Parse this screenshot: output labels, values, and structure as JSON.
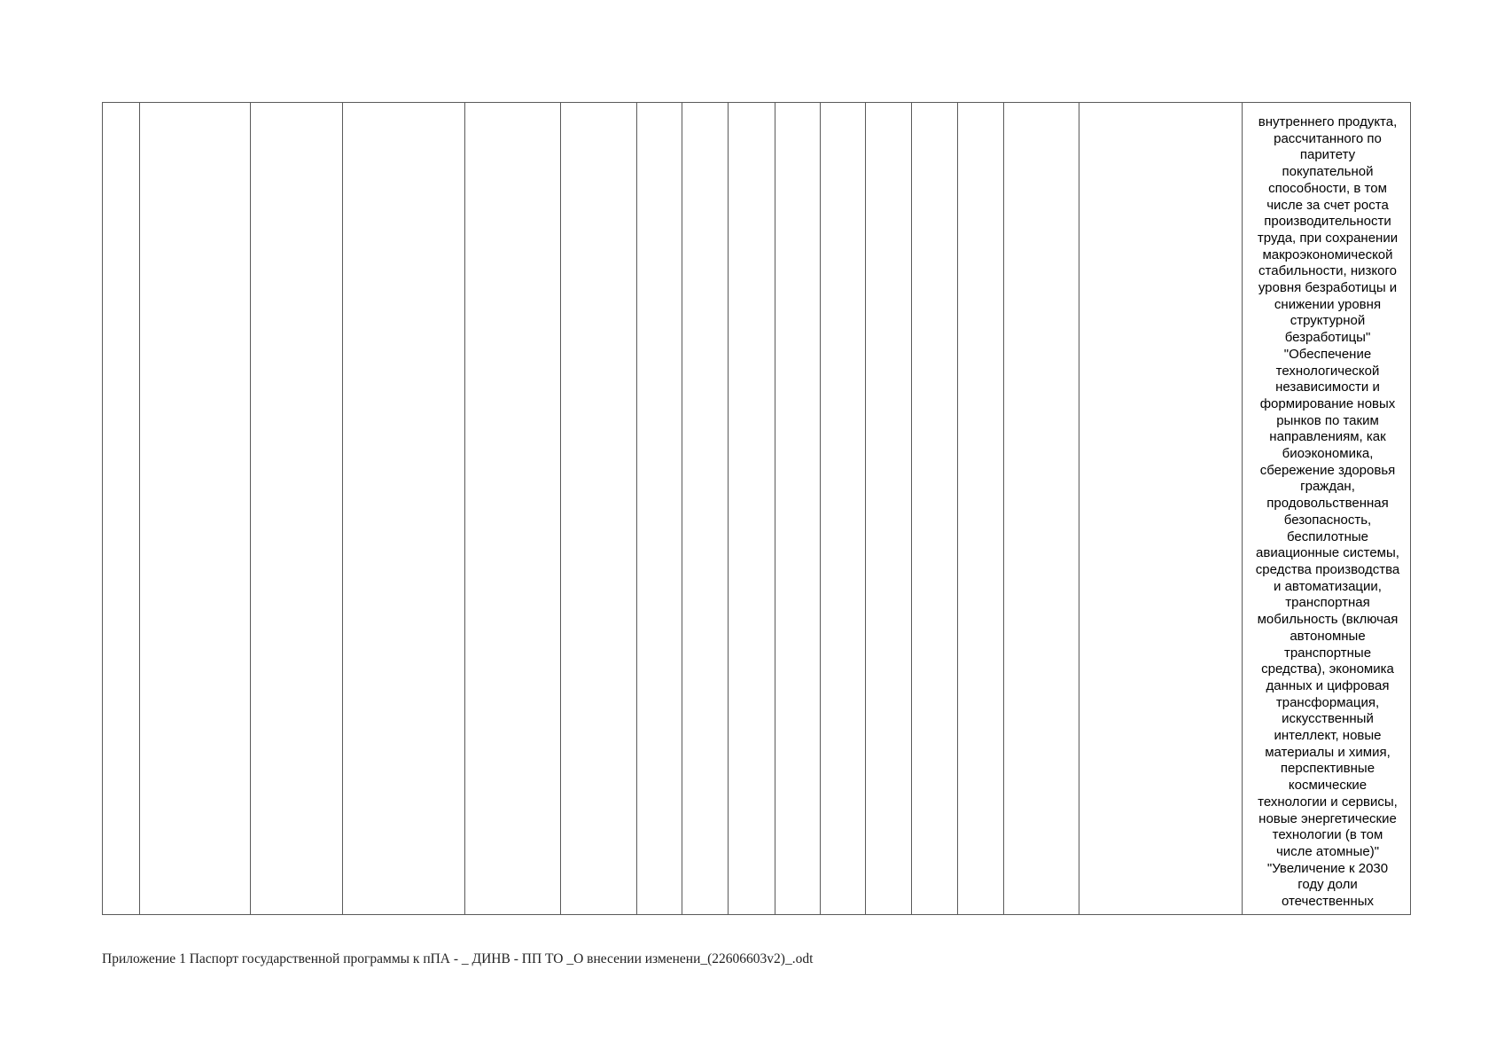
{
  "table": {
    "last_column_lines": [
      "внутреннего продукта,",
      "рассчитанного по",
      "паритету",
      "покупательной",
      "способности, в том",
      "числе за счет роста",
      "производительности",
      "труда, при сохранении",
      "макроэкономической",
      "стабильности, низкого",
      "уровня безработицы и",
      "снижении уровня",
      "структурной",
      "безработицы\"",
      "\"Обеспечение",
      "технологической",
      "независимости и",
      "формирование новых",
      "рынков по таким",
      "направлениям, как",
      "биоэкономика,",
      "сбережение здоровья",
      "граждан,",
      "продовольственная",
      "безопасность,",
      "беспилотные",
      "авиационные системы,",
      "средства производства",
      "и автоматизации,",
      "транспортная",
      "мобильность (включая",
      "автономные",
      "транспортные",
      "средства), экономика",
      "данных и цифровая",
      "трансформация,",
      "искусственный",
      "интеллект, новые",
      "материалы и химия,",
      "перспективные",
      "космические",
      "технологии и сервисы,",
      "новые энергетические",
      "технологии (в том",
      "числе атомные)\"",
      "\"Увеличение к 2030",
      "году доли",
      "отечественных"
    ]
  },
  "footer": {
    "text": "Приложение 1 Паспорт государственной программы к пПА - _ ДИНВ - ПП ТО _О внесении изменени_(22606603v2)_.odt"
  }
}
